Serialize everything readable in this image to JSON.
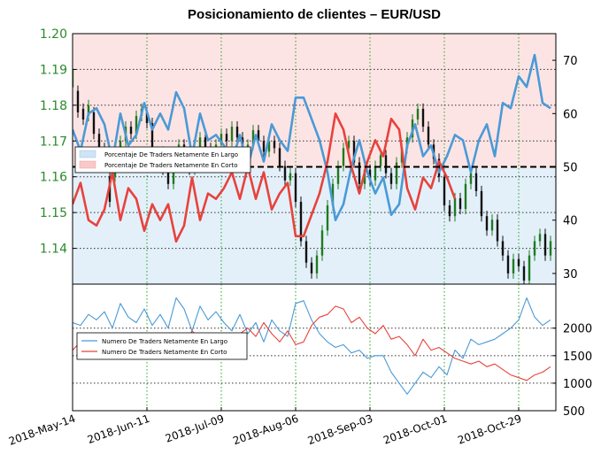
{
  "chart_data": [
    {
      "type": "line",
      "title": "Posicionamiento de clientes – EUR/USD",
      "price_axis": {
        "ticks": [
          "1.14",
          "1.15",
          "1.16",
          "1.17",
          "1.18",
          "1.19",
          "1.20"
        ],
        "range": [
          1.13,
          1.2
        ],
        "color": "#2a8a2a"
      },
      "pct_axis": {
        "ticks": [
          "30",
          "40",
          "50",
          "60",
          "70"
        ],
        "range": [
          28,
          75
        ]
      },
      "x_ticks": [
        "2018-May-14",
        "2018-Jun-11",
        "2018-Jul-09",
        "2018-Aug-06",
        "2018-Sep-03",
        "2018-Oct-01",
        "2018-Oct-29"
      ],
      "x_range_days": [
        0,
        182
      ],
      "x_tick_days": [
        0,
        28,
        56,
        84,
        112,
        140,
        168
      ],
      "reference_line": 50,
      "legend": {
        "placement": "left",
        "entries": [
          "Porcentaje De Traders Netamente En Largo",
          "Porcentaje De Traders Netamente En Corto"
        ]
      },
      "series": [
        {
          "name": "Porcentaje De Traders Netamente En Largo",
          "color": "#4a9ad6",
          "x": [
            0,
            3,
            6,
            9,
            12,
            15,
            18,
            21,
            24,
            27,
            30,
            33,
            36,
            39,
            42,
            45,
            48,
            51,
            54,
            57,
            60,
            63,
            66,
            69,
            72,
            75,
            78,
            81,
            84,
            87,
            90,
            93,
            96,
            99,
            102,
            105,
            108,
            111,
            114,
            117,
            120,
            123,
            126,
            129,
            132,
            135,
            138,
            141,
            144,
            147,
            150,
            153,
            156,
            159,
            162,
            165,
            168,
            171,
            174,
            177,
            180
          ],
          "y": [
            57,
            53,
            60,
            61,
            58,
            51,
            60,
            54,
            56,
            62,
            57,
            60,
            57,
            64,
            61,
            52,
            60,
            55,
            56,
            54,
            51,
            56,
            50,
            56,
            51,
            58,
            55,
            53,
            63,
            63,
            59,
            55,
            49,
            40,
            43,
            50,
            55,
            49,
            45,
            48,
            41,
            43,
            54,
            58,
            52,
            54,
            49,
            52,
            56,
            55,
            49,
            55,
            58,
            52,
            62,
            61,
            67,
            65,
            71,
            62,
            61
          ]
        },
        {
          "name": "Porcentaje De Traders Netamente En Corto",
          "color": "#e8423c",
          "x": [
            0,
            3,
            6,
            9,
            12,
            15,
            18,
            21,
            24,
            27,
            30,
            33,
            36,
            39,
            42,
            45,
            48,
            51,
            54,
            57,
            60,
            63,
            66,
            69,
            72,
            75,
            78,
            81,
            84,
            87,
            90,
            93,
            96,
            99,
            102,
            105,
            108,
            111,
            114,
            117,
            120,
            123,
            126,
            129,
            132,
            135,
            138,
            141,
            144
          ],
          "y": [
            43,
            47,
            40,
            39,
            42,
            49,
            40,
            46,
            44,
            38,
            43,
            40,
            43,
            36,
            39,
            48,
            40,
            45,
            44,
            46,
            49,
            44,
            50,
            44,
            49,
            42,
            45,
            47,
            37,
            37,
            41,
            45,
            51,
            60,
            57,
            50,
            45,
            51,
            55,
            52,
            59,
            57,
            46,
            42,
            48,
            46,
            51,
            48,
            44
          ]
        }
      ],
      "price_bars": [
        {
          "x": 0,
          "o": 1.185,
          "c": 1.19
        },
        {
          "x": 2,
          "o": 1.184,
          "c": 1.178
        },
        {
          "x": 4,
          "o": 1.179,
          "c": 1.176
        },
        {
          "x": 6,
          "o": 1.177,
          "c": 1.18
        },
        {
          "x": 8,
          "o": 1.178,
          "c": 1.172
        },
        {
          "x": 10,
          "o": 1.172,
          "c": 1.168
        },
        {
          "x": 12,
          "o": 1.168,
          "c": 1.163
        },
        {
          "x": 14,
          "o": 1.16,
          "c": 1.153
        },
        {
          "x": 16,
          "o": 1.16,
          "c": 1.165
        },
        {
          "x": 18,
          "o": 1.165,
          "c": 1.17
        },
        {
          "x": 20,
          "o": 1.17,
          "c": 1.174
        },
        {
          "x": 22,
          "o": 1.174,
          "c": 1.172
        },
        {
          "x": 24,
          "o": 1.172,
          "c": 1.177
        },
        {
          "x": 26,
          "o": 1.177,
          "c": 1.179
        },
        {
          "x": 28,
          "o": 1.178,
          "c": 1.175
        },
        {
          "x": 30,
          "o": 1.175,
          "c": 1.164
        },
        {
          "x": 32,
          "o": 1.164,
          "c": 1.167
        },
        {
          "x": 34,
          "o": 1.167,
          "c": 1.162
        },
        {
          "x": 36,
          "o": 1.162,
          "c": 1.158
        },
        {
          "x": 38,
          "o": 1.158,
          "c": 1.166
        },
        {
          "x": 40,
          "o": 1.166,
          "c": 1.169
        },
        {
          "x": 42,
          "o": 1.169,
          "c": 1.165
        },
        {
          "x": 44,
          "o": 1.165,
          "c": 1.162
        },
        {
          "x": 46,
          "o": 1.162,
          "c": 1.168
        },
        {
          "x": 48,
          "o": 1.168,
          "c": 1.171
        },
        {
          "x": 50,
          "o": 1.171,
          "c": 1.168
        },
        {
          "x": 52,
          "o": 1.168,
          "c": 1.166
        },
        {
          "x": 54,
          "o": 1.166,
          "c": 1.169
        },
        {
          "x": 56,
          "o": 1.169,
          "c": 1.172
        },
        {
          "x": 58,
          "o": 1.172,
          "c": 1.17
        },
        {
          "x": 60,
          "o": 1.17,
          "c": 1.174
        },
        {
          "x": 62,
          "o": 1.174,
          "c": 1.171
        },
        {
          "x": 64,
          "o": 1.171,
          "c": 1.166
        },
        {
          "x": 66,
          "o": 1.166,
          "c": 1.169
        },
        {
          "x": 68,
          "o": 1.169,
          "c": 1.173
        },
        {
          "x": 70,
          "o": 1.173,
          "c": 1.17
        },
        {
          "x": 72,
          "o": 1.17,
          "c": 1.167
        },
        {
          "x": 74,
          "o": 1.167,
          "c": 1.17
        },
        {
          "x": 76,
          "o": 1.17,
          "c": 1.168
        },
        {
          "x": 78,
          "o": 1.168,
          "c": 1.163
        },
        {
          "x": 80,
          "o": 1.163,
          "c": 1.159
        },
        {
          "x": 82,
          "o": 1.159,
          "c": 1.161
        },
        {
          "x": 84,
          "o": 1.161,
          "c": 1.153
        },
        {
          "x": 86,
          "o": 1.153,
          "c": 1.142
        },
        {
          "x": 88,
          "o": 1.142,
          "c": 1.136
        },
        {
          "x": 90,
          "o": 1.136,
          "c": 1.133
        },
        {
          "x": 92,
          "o": 1.133,
          "c": 1.138
        },
        {
          "x": 94,
          "o": 1.138,
          "c": 1.145
        },
        {
          "x": 96,
          "o": 1.145,
          "c": 1.152
        },
        {
          "x": 98,
          "o": 1.152,
          "c": 1.158
        },
        {
          "x": 100,
          "o": 1.158,
          "c": 1.163
        },
        {
          "x": 102,
          "o": 1.163,
          "c": 1.168
        },
        {
          "x": 104,
          "o": 1.168,
          "c": 1.17
        },
        {
          "x": 106,
          "o": 1.17,
          "c": 1.164
        },
        {
          "x": 108,
          "o": 1.164,
          "c": 1.158
        },
        {
          "x": 110,
          "o": 1.158,
          "c": 1.162
        },
        {
          "x": 112,
          "o": 1.162,
          "c": 1.159
        },
        {
          "x": 114,
          "o": 1.159,
          "c": 1.163
        },
        {
          "x": 116,
          "o": 1.163,
          "c": 1.166
        },
        {
          "x": 118,
          "o": 1.166,
          "c": 1.161
        },
        {
          "x": 120,
          "o": 1.161,
          "c": 1.158
        },
        {
          "x": 122,
          "o": 1.158,
          "c": 1.164
        },
        {
          "x": 124,
          "o": 1.164,
          "c": 1.168
        },
        {
          "x": 126,
          "o": 1.168,
          "c": 1.171
        },
        {
          "x": 128,
          "o": 1.171,
          "c": 1.176
        },
        {
          "x": 130,
          "o": 1.176,
          "c": 1.179
        },
        {
          "x": 132,
          "o": 1.179,
          "c": 1.174
        },
        {
          "x": 134,
          "o": 1.174,
          "c": 1.169
        },
        {
          "x": 136,
          "o": 1.169,
          "c": 1.165
        },
        {
          "x": 138,
          "o": 1.165,
          "c": 1.16
        },
        {
          "x": 140,
          "o": 1.16,
          "c": 1.152
        },
        {
          "x": 142,
          "o": 1.152,
          "c": 1.149
        },
        {
          "x": 144,
          "o": 1.149,
          "c": 1.154
        },
        {
          "x": 146,
          "o": 1.154,
          "c": 1.151
        },
        {
          "x": 148,
          "o": 1.151,
          "c": 1.158
        },
        {
          "x": 150,
          "o": 1.158,
          "c": 1.161
        },
        {
          "x": 152,
          "o": 1.161,
          "c": 1.156
        },
        {
          "x": 154,
          "o": 1.156,
          "c": 1.149
        },
        {
          "x": 156,
          "o": 1.149,
          "c": 1.145
        },
        {
          "x": 158,
          "o": 1.145,
          "c": 1.148
        },
        {
          "x": 160,
          "o": 1.148,
          "c": 1.142
        },
        {
          "x": 162,
          "o": 1.142,
          "c": 1.138
        },
        {
          "x": 164,
          "o": 1.138,
          "c": 1.133
        },
        {
          "x": 166,
          "o": 1.133,
          "c": 1.137
        },
        {
          "x": 168,
          "o": 1.137,
          "c": 1.135
        },
        {
          "x": 170,
          "o": 1.135,
          "c": 1.131
        },
        {
          "x": 172,
          "o": 1.131,
          "c": 1.138
        },
        {
          "x": 174,
          "o": 1.138,
          "c": 1.142
        },
        {
          "x": 176,
          "o": 1.142,
          "c": 1.144
        },
        {
          "x": 178,
          "o": 1.144,
          "c": 1.138
        },
        {
          "x": 180,
          "o": 1.138,
          "c": 1.142
        }
      ]
    },
    {
      "type": "line",
      "y_axis": {
        "ticks": [
          "500",
          "1000",
          "1500",
          "2000"
        ],
        "range": [
          500,
          2800
        ]
      },
      "legend": {
        "placement": "left",
        "entries": [
          "Numero De Traders Netamente En Largo",
          "Numero De Traders Netamente En Corto"
        ]
      },
      "series": [
        {
          "name": "Numero De Traders Netamente En Largo",
          "color": "#4a9ad6",
          "x": [
            0,
            3,
            6,
            9,
            12,
            15,
            18,
            21,
            24,
            27,
            30,
            33,
            36,
            39,
            42,
            45,
            48,
            51,
            54,
            57,
            60,
            63,
            66,
            69,
            72,
            75,
            78,
            81,
            84,
            87,
            90,
            93,
            96,
            99,
            102,
            105,
            108,
            111,
            114,
            117,
            120,
            123,
            126,
            129,
            132,
            135,
            138,
            141,
            144,
            147,
            150,
            153,
            156,
            159,
            162,
            165,
            168,
            171,
            174,
            177,
            180
          ],
          "y": [
            2100,
            2050,
            2250,
            2150,
            2300,
            2000,
            2450,
            2200,
            2100,
            2350,
            2050,
            2250,
            2000,
            2550,
            2350,
            1950,
            2400,
            2150,
            2300,
            2100,
            1950,
            2250,
            1900,
            2100,
            1750,
            2150,
            1950,
            1850,
            2450,
            2500,
            2150,
            1900,
            1750,
            1650,
            1700,
            1550,
            1600,
            1450,
            1500,
            1500,
            1200,
            1000,
            800,
            1000,
            1200,
            1100,
            1300,
            1150,
            1600,
            1450,
            1800,
            1700,
            1750,
            1800,
            1900,
            2000,
            2150,
            2550,
            2200,
            2050,
            2150
          ]
        },
        {
          "name": "Numero De Traders Netamente En Corto",
          "color": "#e8423c",
          "x": [
            0,
            3,
            6,
            9,
            12,
            15,
            18,
            21,
            24,
            27,
            30,
            33,
            36,
            39,
            42,
            45,
            48,
            51,
            54,
            57,
            60,
            63,
            66,
            69,
            72,
            75,
            78,
            81,
            84,
            87,
            90,
            93,
            96,
            99,
            102,
            105,
            108,
            111,
            114,
            117,
            120,
            123,
            126,
            129,
            132,
            135,
            138,
            141,
            144,
            147,
            150,
            153,
            156,
            159,
            162,
            165,
            168,
            171,
            174,
            177,
            180
          ],
          "y": [
            1600,
            1750,
            1650,
            1550,
            1800,
            1700,
            1650,
            1850,
            1700,
            1600,
            1900,
            1750,
            1650,
            1850,
            1700,
            1950,
            1800,
            1900,
            1650,
            1850,
            1800,
            1900,
            2000,
            1850,
            2100,
            1900,
            1750,
            1950,
            1700,
            1750,
            2050,
            2200,
            2250,
            2400,
            2350,
            2100,
            2200,
            2000,
            1900,
            2050,
            1800,
            1850,
            1700,
            1500,
            1800,
            1600,
            1650,
            1550,
            1450,
            1400,
            1350,
            1400,
            1300,
            1350,
            1250,
            1150,
            1100,
            1050,
            1150,
            1200,
            1300
          ]
        }
      ]
    }
  ]
}
